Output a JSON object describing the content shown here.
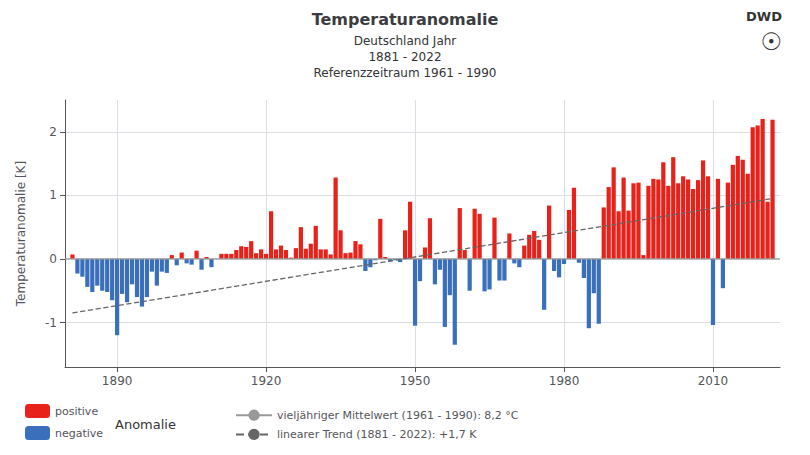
{
  "chart_data": {
    "type": "bar",
    "title": "Temperaturanomalie",
    "subtitle": [
      "Deutschland Jahr",
      "1881 - 2022",
      "Referenzzeitraum 1961 - 1990"
    ],
    "ylabel": "Temperaturanomalie [K]",
    "x": [
      1881,
      1882,
      1883,
      1884,
      1885,
      1886,
      1887,
      1888,
      1889,
      1890,
      1891,
      1892,
      1893,
      1894,
      1895,
      1896,
      1897,
      1898,
      1899,
      1900,
      1901,
      1902,
      1903,
      1904,
      1905,
      1906,
      1907,
      1908,
      1909,
      1910,
      1911,
      1912,
      1913,
      1914,
      1915,
      1916,
      1917,
      1918,
      1919,
      1920,
      1921,
      1922,
      1923,
      1924,
      1925,
      1926,
      1927,
      1928,
      1929,
      1930,
      1931,
      1932,
      1933,
      1934,
      1935,
      1936,
      1937,
      1938,
      1939,
      1940,
      1941,
      1942,
      1943,
      1944,
      1945,
      1946,
      1947,
      1948,
      1949,
      1950,
      1951,
      1952,
      1953,
      1954,
      1955,
      1956,
      1957,
      1958,
      1959,
      1960,
      1961,
      1962,
      1963,
      1964,
      1965,
      1966,
      1967,
      1968,
      1969,
      1970,
      1971,
      1972,
      1973,
      1974,
      1975,
      1976,
      1977,
      1978,
      1979,
      1980,
      1981,
      1982,
      1983,
      1984,
      1985,
      1986,
      1987,
      1988,
      1989,
      1990,
      1991,
      1992,
      1993,
      1994,
      1995,
      1996,
      1997,
      1998,
      1999,
      2000,
      2001,
      2002,
      2003,
      2004,
      2005,
      2006,
      2007,
      2008,
      2009,
      2010,
      2011,
      2012,
      2013,
      2014,
      2015,
      2016,
      2017,
      2018,
      2019,
      2020,
      2021,
      2022
    ],
    "series": [
      {
        "name": "positive",
        "type": "bar",
        "color": "#e8221b",
        "values": [
          0.07,
          null,
          null,
          null,
          null,
          null,
          null,
          null,
          null,
          null,
          null,
          null,
          null,
          null,
          null,
          null,
          null,
          null,
          null,
          null,
          0.06,
          null,
          0.1,
          null,
          null,
          0.13,
          null,
          0.03,
          null,
          0.0,
          0.08,
          0.08,
          0.08,
          0.14,
          0.2,
          0.19,
          0.28,
          0.09,
          0.15,
          0.08,
          0.75,
          0.15,
          0.21,
          0.14,
          0.02,
          0.17,
          0.5,
          0.16,
          0.24,
          0.52,
          0.15,
          0.15,
          0.07,
          1.28,
          0.45,
          0.09,
          0.1,
          0.28,
          0.23,
          null,
          null,
          null,
          0.63,
          0.03,
          null,
          null,
          null,
          0.45,
          0.9,
          null,
          null,
          0.18,
          0.64,
          null,
          null,
          null,
          null,
          null,
          0.8,
          0.14,
          null,
          0.79,
          0.71,
          null,
          null,
          0.65,
          null,
          null,
          0.4,
          null,
          null,
          0.21,
          0.38,
          0.44,
          0.3,
          null,
          0.84,
          null,
          null,
          null,
          0.77,
          1.12,
          null,
          null,
          null,
          null,
          null,
          0.81,
          1.13,
          1.44,
          0.75,
          1.28,
          0.76,
          1.19,
          1.2,
          0.06,
          1.15,
          1.26,
          1.25,
          1.52,
          1.15,
          1.6,
          1.19,
          1.3,
          1.25,
          1.1,
          1.24,
          1.55,
          1.3,
          null,
          1.26,
          null,
          1.2,
          1.48,
          1.62,
          1.56,
          1.34,
          2.07,
          2.1,
          2.2,
          0.9,
          2.19
        ]
      },
      {
        "name": "negative",
        "type": "bar",
        "color": "#3a6fbc",
        "values": [
          null,
          -0.23,
          -0.28,
          -0.44,
          -0.52,
          -0.42,
          -0.5,
          -0.52,
          -0.65,
          -1.2,
          -0.55,
          -0.68,
          -0.4,
          -0.6,
          -0.75,
          -0.6,
          -0.2,
          -0.42,
          -0.2,
          -0.22,
          null,
          -0.1,
          null,
          -0.07,
          -0.09,
          null,
          -0.17,
          null,
          -0.13,
          null,
          null,
          null,
          null,
          null,
          null,
          null,
          null,
          null,
          null,
          null,
          null,
          null,
          null,
          null,
          null,
          null,
          null,
          null,
          null,
          null,
          null,
          null,
          null,
          null,
          null,
          null,
          null,
          null,
          null,
          -0.19,
          -0.13,
          -0.02,
          null,
          null,
          -0.04,
          -0.02,
          -0.05,
          null,
          null,
          -1.05,
          -0.35,
          null,
          null,
          -0.4,
          -0.17,
          -1.07,
          -0.57,
          -1.35,
          null,
          null,
          -0.5,
          null,
          null,
          -0.51,
          -0.48,
          null,
          -0.34,
          -0.34,
          null,
          -0.07,
          -0.13,
          null,
          null,
          null,
          null,
          -0.8,
          null,
          -0.19,
          -0.29,
          -0.08,
          null,
          null,
          -0.06,
          -0.3,
          -1.09,
          -0.54,
          -1.02,
          null,
          null,
          null,
          null,
          null,
          null,
          null,
          null,
          null,
          null,
          null,
          null,
          null,
          null,
          null,
          null,
          null,
          null,
          null,
          null,
          null,
          null,
          -1.04,
          null,
          -0.46,
          null,
          null,
          null,
          null,
          null,
          null,
          null,
          null,
          null,
          null
        ]
      },
      {
        "name": "vieljähriger Mittelwert (1961 - 1990): 8,2 °C",
        "type": "line",
        "color": "#999999",
        "line_style": "solid",
        "x": [
          1879.5,
          2023.5
        ],
        "values": [
          0.0,
          0.0
        ]
      },
      {
        "name": "linearer Trend (1881 - 2022): +1,7 K",
        "type": "line",
        "color": "#666666",
        "line_style": "dashed",
        "x": [
          1881,
          2022
        ],
        "values": [
          -0.85,
          0.95
        ]
      }
    ],
    "annotations": [
      "Anomalie",
      "DWD",
      "☉"
    ],
    "xlim": [
      1879.5,
      2023.5
    ],
    "xticks": [
      1890,
      1920,
      1950,
      1980,
      2010
    ],
    "ylim": [
      -1.7,
      2.5
    ],
    "yticks": [
      -1,
      0,
      1,
      2
    ],
    "grid": true,
    "legend": "bottom"
  }
}
